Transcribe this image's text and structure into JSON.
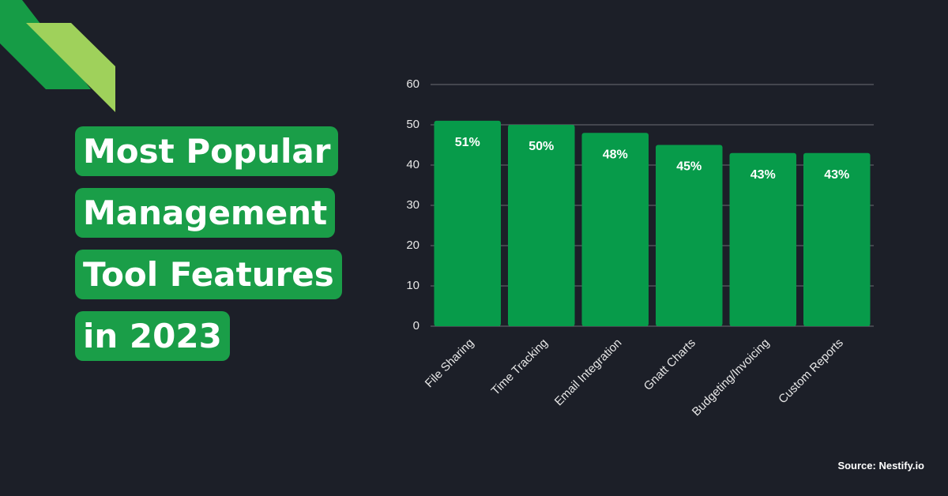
{
  "chart_data": {
    "type": "bar",
    "title": [
      "Most Popular",
      "Management",
      "Tool Features",
      "in 2023"
    ],
    "categories": [
      "File Sharing",
      "Time Tracking",
      "Email Integration",
      "Gnatt Charts",
      "Budgeting/Invoicing",
      "Custom Reports"
    ],
    "values": [
      51,
      50,
      48,
      45,
      43,
      43
    ],
    "value_labels": [
      "51%",
      "50%",
      "48%",
      "45%",
      "43%",
      "43%"
    ],
    "color": "#079b4a",
    "ylim": [
      0,
      60
    ],
    "yticks": [
      0,
      10,
      20,
      30,
      40,
      50,
      60
    ],
    "grid": true,
    "source": "Source: Nestify.io"
  }
}
